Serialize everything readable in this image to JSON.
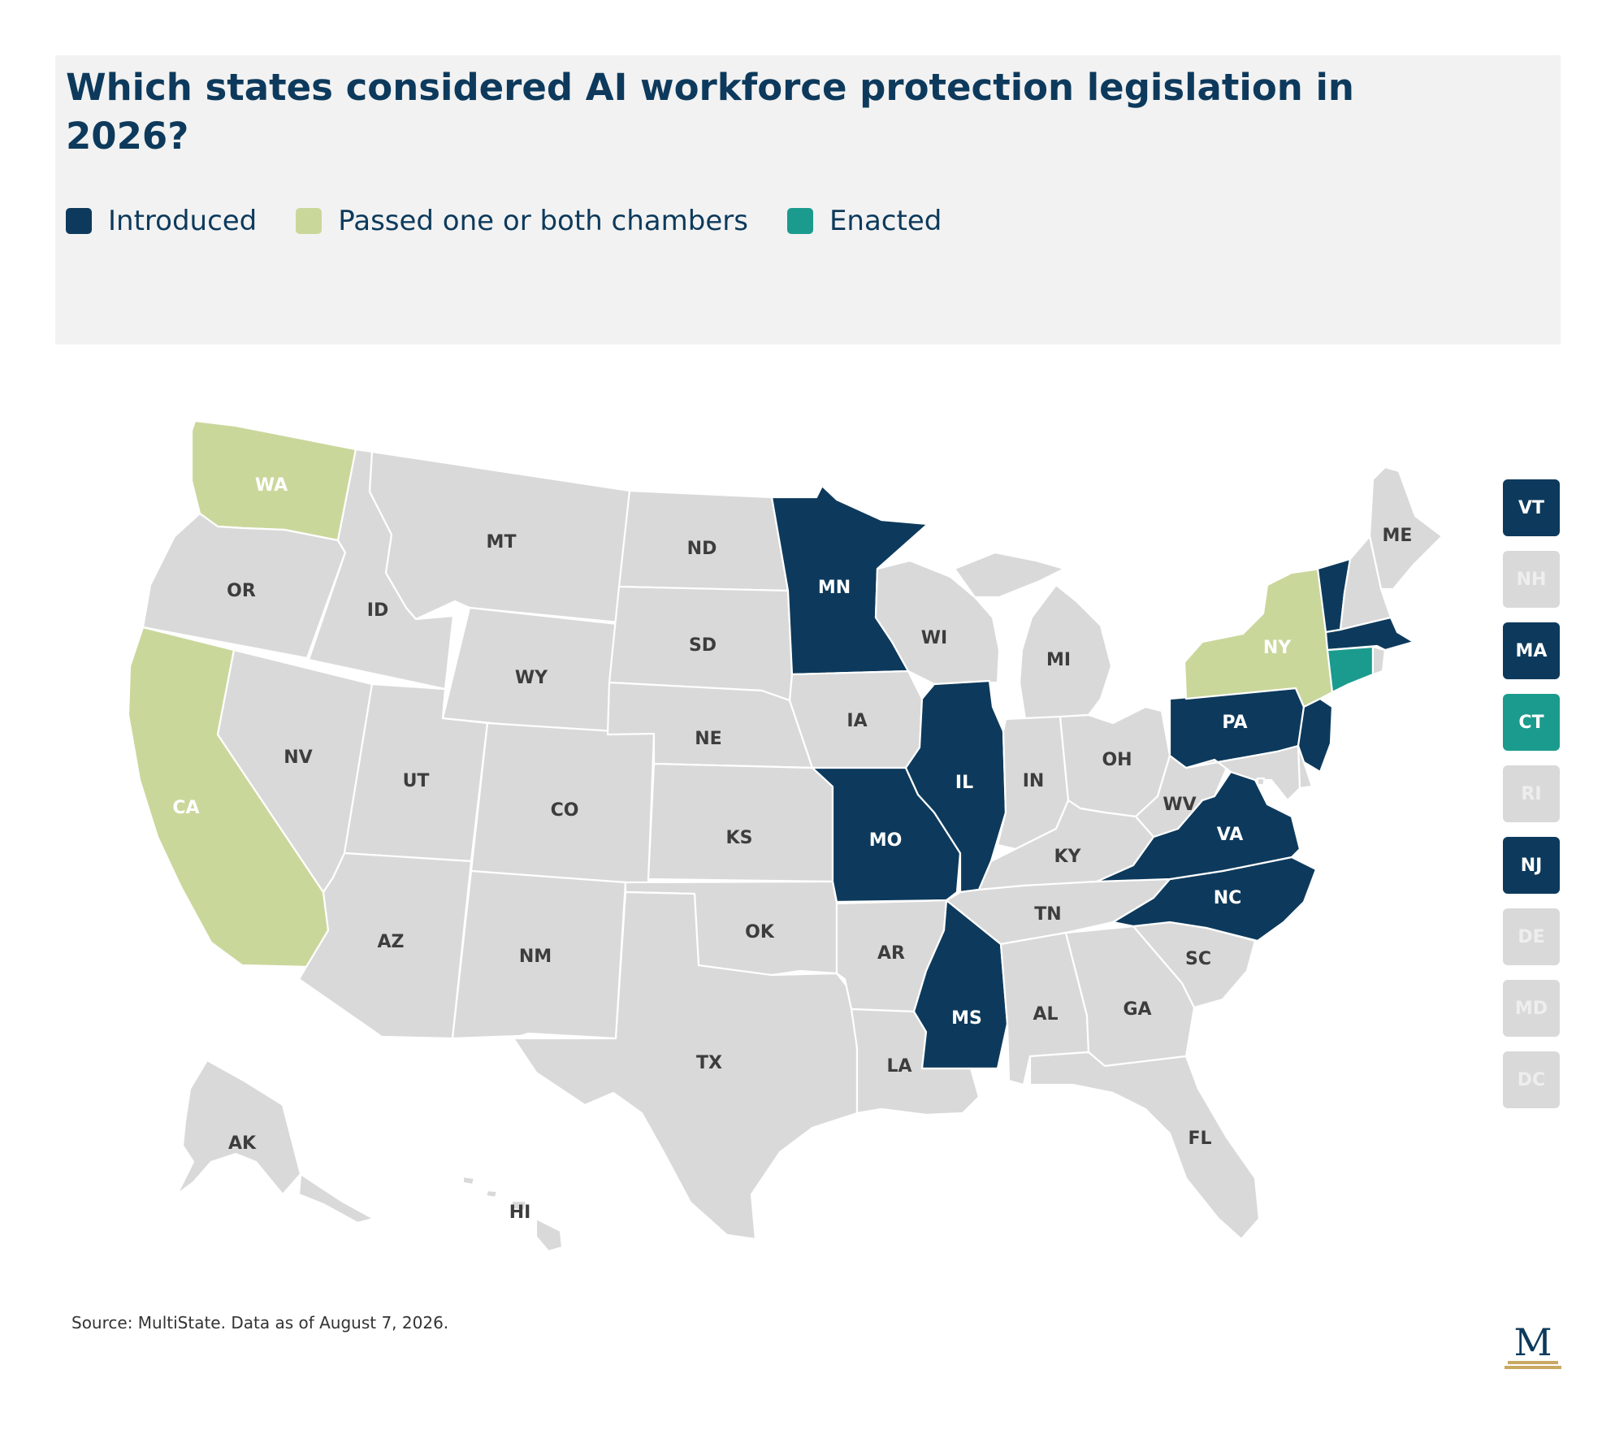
{
  "title": "Which states considered AI workforce protection legislation in 2026?",
  "legend": [
    {
      "key": "introduced",
      "label": "Introduced",
      "color": "#0d3a5c"
    },
    {
      "key": "passed",
      "label": "Passed one or both chambers",
      "color": "#cad79b"
    },
    {
      "key": "enacted",
      "label": "Enacted",
      "color": "#1a9b8d"
    }
  ],
  "colors": {
    "none": "#d9d9d9",
    "label_dark": "#3d3d3d",
    "label_light": "#ffffff",
    "title": "#0d3a5c"
  },
  "states": [
    {
      "abbr": "WA",
      "status": "passed"
    },
    {
      "abbr": "OR",
      "status": "none"
    },
    {
      "abbr": "CA",
      "status": "passed"
    },
    {
      "abbr": "ID",
      "status": "none"
    },
    {
      "abbr": "NV",
      "status": "none"
    },
    {
      "abbr": "MT",
      "status": "none"
    },
    {
      "abbr": "WY",
      "status": "none"
    },
    {
      "abbr": "UT",
      "status": "none"
    },
    {
      "abbr": "AZ",
      "status": "none"
    },
    {
      "abbr": "CO",
      "status": "none"
    },
    {
      "abbr": "NM",
      "status": "none"
    },
    {
      "abbr": "ND",
      "status": "none"
    },
    {
      "abbr": "SD",
      "status": "none"
    },
    {
      "abbr": "NE",
      "status": "none"
    },
    {
      "abbr": "KS",
      "status": "none"
    },
    {
      "abbr": "OK",
      "status": "none"
    },
    {
      "abbr": "TX",
      "status": "none"
    },
    {
      "abbr": "MN",
      "status": "introduced"
    },
    {
      "abbr": "IA",
      "status": "none"
    },
    {
      "abbr": "MO",
      "status": "introduced"
    },
    {
      "abbr": "AR",
      "status": "none"
    },
    {
      "abbr": "LA",
      "status": "none"
    },
    {
      "abbr": "WI",
      "status": "none"
    },
    {
      "abbr": "IL",
      "status": "introduced"
    },
    {
      "abbr": "MS",
      "status": "introduced"
    },
    {
      "abbr": "MI",
      "status": "none"
    },
    {
      "abbr": "IN",
      "status": "none"
    },
    {
      "abbr": "OH",
      "status": "none"
    },
    {
      "abbr": "KY",
      "status": "none"
    },
    {
      "abbr": "TN",
      "status": "none"
    },
    {
      "abbr": "AL",
      "status": "none"
    },
    {
      "abbr": "GA",
      "status": "none"
    },
    {
      "abbr": "FL",
      "status": "none"
    },
    {
      "abbr": "SC",
      "status": "none"
    },
    {
      "abbr": "NC",
      "status": "introduced"
    },
    {
      "abbr": "VA",
      "status": "introduced"
    },
    {
      "abbr": "WV",
      "status": "none"
    },
    {
      "abbr": "PA",
      "status": "introduced"
    },
    {
      "abbr": "NY",
      "status": "passed"
    },
    {
      "abbr": "ME",
      "status": "none"
    },
    {
      "abbr": "AK",
      "status": "none"
    },
    {
      "abbr": "HI",
      "status": "none"
    },
    {
      "abbr": "VT",
      "status": "introduced"
    },
    {
      "abbr": "NH",
      "status": "none"
    },
    {
      "abbr": "MA",
      "status": "introduced"
    },
    {
      "abbr": "CT",
      "status": "enacted"
    },
    {
      "abbr": "RI",
      "status": "none"
    },
    {
      "abbr": "NJ",
      "status": "introduced"
    },
    {
      "abbr": "DE",
      "status": "none"
    },
    {
      "abbr": "MD",
      "status": "none"
    },
    {
      "abbr": "DC",
      "status": "none"
    }
  ],
  "small_states": [
    "VT",
    "NH",
    "MA",
    "CT",
    "RI",
    "NJ",
    "DE",
    "MD",
    "DC"
  ],
  "source": "Source: MultiState. Data as of August 7, 2026.",
  "logo_letter": "M"
}
